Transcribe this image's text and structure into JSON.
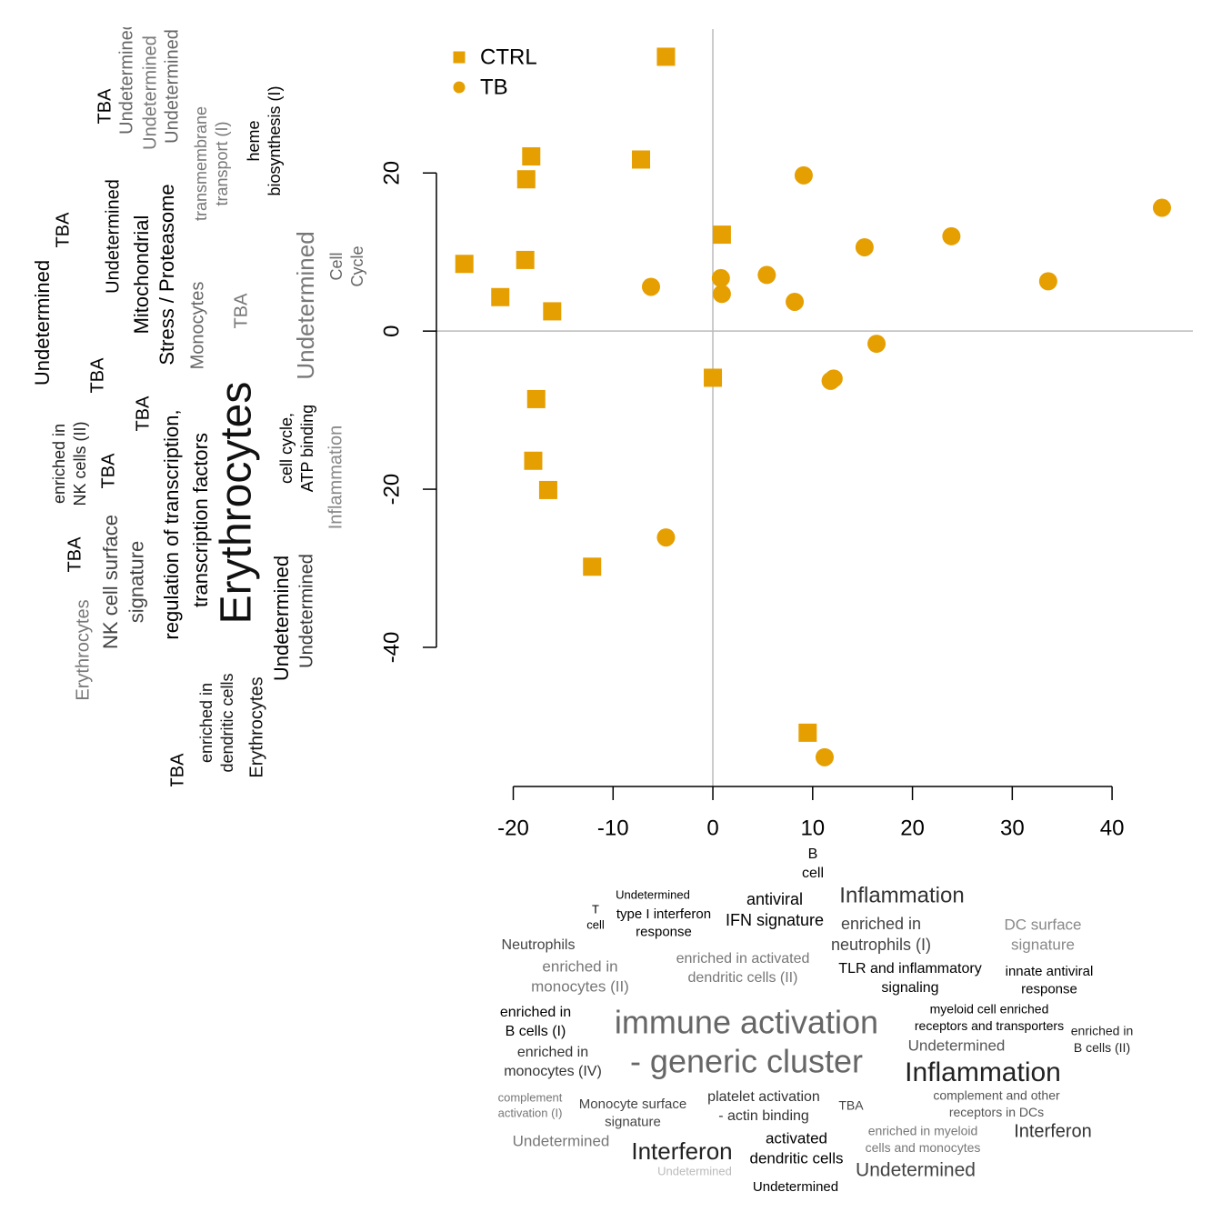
{
  "chart_data": {
    "type": "scatter",
    "xlim": [
      -27.7,
      48.1
    ],
    "ylim": [
      -57.6,
      38.2
    ],
    "xticks": [
      -20,
      -10,
      0,
      10,
      20,
      30,
      40
    ],
    "yticks": [
      -40,
      -20,
      0,
      20
    ],
    "hline": 0,
    "vline": 0,
    "legend": "topleft",
    "series": [
      {
        "name": "CTRL",
        "color": "#E69F00",
        "marker": "square",
        "x": [
          -4.7,
          -18.2,
          -7.2,
          -18.7,
          0.9,
          -24.9,
          -18.8,
          -21.3,
          -16.1,
          0.0,
          -17.7,
          -18.0,
          -16.5,
          -12.1,
          9.5
        ],
        "values": [
          34.7,
          22.1,
          21.7,
          19.2,
          12.2,
          8.5,
          9.0,
          4.3,
          2.5,
          -5.9,
          -8.6,
          -16.4,
          -20.1,
          -29.8,
          -50.8
        ]
      },
      {
        "name": "TB",
        "color": "#E69F00",
        "marker": "circle",
        "x": [
          9.1,
          45.0,
          15.2,
          23.9,
          33.6,
          -6.2,
          0.8,
          0.9,
          5.4,
          8.2,
          16.4,
          11.8,
          12.1,
          -4.7,
          11.2
        ],
        "values": [
          19.7,
          15.6,
          10.6,
          12.0,
          6.3,
          5.6,
          6.7,
          4.7,
          7.1,
          3.7,
          -1.6,
          -6.3,
          -6.0,
          -26.1,
          -53.9
        ]
      }
    ]
  },
  "left_words": [
    {
      "lines": [
        "TBA"
      ]
    },
    {
      "lines": [
        "Undetermined"
      ]
    },
    {
      "lines": [
        "Undetermined"
      ]
    },
    {
      "lines": [
        "Undetermined"
      ]
    },
    {
      "lines": [
        "transmembrane",
        "transport (I)"
      ]
    },
    {
      "lines": [
        "heme",
        "biosynthesis (I)"
      ]
    },
    {
      "lines": [
        "TBA"
      ]
    },
    {
      "lines": [
        "Undetermined"
      ]
    },
    {
      "lines": [
        "Mitochondrial"
      ]
    },
    {
      "lines": [
        "Stress / Proteasome"
      ]
    },
    {
      "lines": [
        "Monocytes"
      ]
    },
    {
      "lines": [
        "TBA"
      ]
    },
    {
      "lines": [
        "Undetermined"
      ]
    },
    {
      "lines": [
        "Cell",
        "Cycle"
      ]
    },
    {
      "lines": [
        "Undetermined"
      ]
    },
    {
      "lines": [
        "TBA"
      ]
    },
    {
      "lines": [
        "TBA"
      ]
    },
    {
      "lines": [
        "regulation of transcription,"
      ]
    },
    {
      "lines": [
        "transcription factors"
      ]
    },
    {
      "lines": [
        "Erythrocytes"
      ]
    },
    {
      "lines": [
        "cell cycle,",
        "ATP binding"
      ]
    },
    {
      "lines": [
        "Inflammation"
      ]
    },
    {
      "lines": [
        "enriched in",
        "NK cells (II)"
      ]
    },
    {
      "lines": [
        "TBA"
      ]
    },
    {
      "lines": [
        "TBA"
      ]
    },
    {
      "lines": [
        "NK cell surface",
        "signature"
      ]
    },
    {
      "lines": [
        "Erythrocytes"
      ]
    },
    {
      "lines": [
        "Undetermined"
      ]
    },
    {
      "lines": [
        "Undetermined"
      ]
    },
    {
      "lines": [
        "enriched in",
        "dendritic cells"
      ]
    },
    {
      "lines": [
        "Erythrocytes"
      ]
    },
    {
      "lines": [
        "TBA"
      ]
    }
  ],
  "bottom_words": [
    {
      "lines": [
        "B",
        "cell"
      ]
    },
    {
      "lines": [
        "T",
        "cell"
      ]
    },
    {
      "lines": [
        "Undetermined"
      ]
    },
    {
      "lines": [
        "type I interferon",
        "response"
      ]
    },
    {
      "lines": [
        "antiviral",
        "IFN signature"
      ]
    },
    {
      "lines": [
        "Inflammation"
      ]
    },
    {
      "lines": [
        "enriched in",
        "neutrophils (I)"
      ]
    },
    {
      "lines": [
        "DC surface",
        "signature"
      ]
    },
    {
      "lines": [
        "Neutrophils"
      ]
    },
    {
      "lines": [
        "enriched in",
        "monocytes (II)"
      ]
    },
    {
      "lines": [
        "enriched in activated",
        "dendritic cells (II)"
      ]
    },
    {
      "lines": [
        "TLR and inflammatory",
        "signaling"
      ]
    },
    {
      "lines": [
        "innate antiviral",
        "response"
      ]
    },
    {
      "lines": [
        "myeloid cell enriched",
        "receptors and transporters"
      ]
    },
    {
      "lines": [
        "enriched in",
        "B cells (I)"
      ]
    },
    {
      "lines": [
        "immune activation",
        "- generic cluster"
      ]
    },
    {
      "lines": [
        "enriched in",
        "B cells (II)"
      ]
    },
    {
      "lines": [
        "Undetermined"
      ]
    },
    {
      "lines": [
        "enriched in",
        "monocytes (IV)"
      ]
    },
    {
      "lines": [
        "Inflammation"
      ]
    },
    {
      "lines": [
        "complement",
        "activation (I)"
      ]
    },
    {
      "lines": [
        "Monocyte surface",
        "signature"
      ]
    },
    {
      "lines": [
        "platelet activation",
        "- actin binding"
      ]
    },
    {
      "lines": [
        "TBA"
      ]
    },
    {
      "lines": [
        "complement and other",
        "receptors in DCs"
      ]
    },
    {
      "lines": [
        "enriched in myeloid",
        "cells and monocytes"
      ]
    },
    {
      "lines": [
        "Interferon"
      ]
    },
    {
      "lines": [
        "Undetermined"
      ]
    },
    {
      "lines": [
        "Interferon"
      ]
    },
    {
      "lines": [
        "Undetermined"
      ]
    },
    {
      "lines": [
        "activated",
        "dendritic cells"
      ]
    },
    {
      "lines": [
        "Undetermined"
      ]
    },
    {
      "lines": [
        "Undetermined"
      ]
    }
  ]
}
